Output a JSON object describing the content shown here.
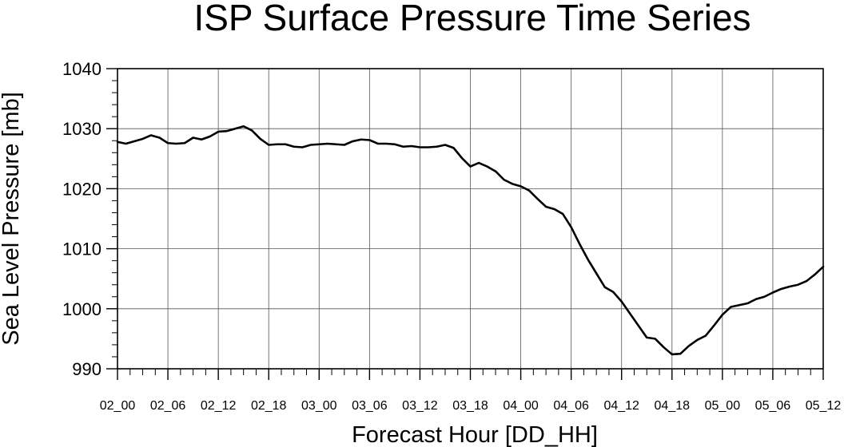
{
  "chart_data": {
    "type": "line",
    "title": "ISP Surface Pressure Time Series",
    "xlabel": "Forecast Hour [DD_HH]",
    "ylabel": "Sea Level Pressure [mb]",
    "ylim": [
      990,
      1040
    ],
    "yticks": [
      990,
      1000,
      1010,
      1020,
      1030,
      1040
    ],
    "xlim": [
      0,
      84
    ],
    "x_step_hours": 1.5,
    "x_major_ticks": [
      {
        "hour": 0,
        "label": "02_00"
      },
      {
        "hour": 6,
        "label": "02_06"
      },
      {
        "hour": 12,
        "label": "02_12"
      },
      {
        "hour": 18,
        "label": "02_18"
      },
      {
        "hour": 24,
        "label": "03_00"
      },
      {
        "hour": 30,
        "label": "03_06"
      },
      {
        "hour": 36,
        "label": "03_12"
      },
      {
        "hour": 42,
        "label": "03_18"
      },
      {
        "hour": 48,
        "label": "04_00"
      },
      {
        "hour": 54,
        "label": "04_06"
      },
      {
        "hour": 60,
        "label": "04_12"
      },
      {
        "hour": 66,
        "label": "04_18"
      },
      {
        "hour": 72,
        "label": "05_00"
      },
      {
        "hour": 78,
        "label": "05_06"
      },
      {
        "hour": 84,
        "label": "05_12"
      }
    ],
    "grid": true,
    "series": [
      {
        "name": "",
        "color": "#000000",
        "x_hours": [
          0,
          1,
          2,
          3,
          4,
          5,
          6,
          7,
          8,
          9,
          10,
          11,
          12,
          13,
          14,
          15,
          16,
          17,
          18,
          19,
          20,
          21,
          22,
          23,
          24,
          25,
          26,
          27,
          28,
          29,
          30,
          31,
          32,
          33,
          34,
          35,
          36,
          37,
          38,
          39,
          40,
          41,
          42,
          43,
          44,
          45,
          46,
          47,
          48,
          49,
          50,
          51,
          52,
          53,
          54,
          55,
          56,
          57,
          58,
          59,
          60,
          61,
          62,
          63,
          64,
          65,
          66,
          67,
          68,
          69,
          70,
          71,
          72,
          73,
          74,
          75,
          76,
          77,
          78,
          79,
          80,
          81,
          82,
          83,
          84
        ],
        "values": [
          1027.8,
          1027.5,
          1027.9,
          1028.3,
          1028.9,
          1028.5,
          1027.6,
          1027.5,
          1027.6,
          1028.5,
          1028.2,
          1028.7,
          1029.5,
          1029.6,
          1030.0,
          1030.4,
          1029.7,
          1028.3,
          1027.3,
          1027.4,
          1027.4,
          1027.0,
          1026.9,
          1027.3,
          1027.4,
          1027.5,
          1027.4,
          1027.3,
          1027.9,
          1028.2,
          1028.1,
          1027.5,
          1027.5,
          1027.4,
          1027.0,
          1027.1,
          1026.9,
          1026.9,
          1027.0,
          1027.3,
          1026.8,
          1025.1,
          1023.7,
          1024.3,
          1023.7,
          1022.9,
          1021.5,
          1020.8,
          1020.4,
          1019.7,
          1018.3,
          1017.0,
          1016.6,
          1015.8,
          1013.6,
          1010.8,
          1008.2,
          1005.9,
          1003.6,
          1002.8,
          1001.2,
          999.2,
          997.2,
          995.2,
          995.0,
          993.6,
          992.4,
          992.5,
          993.8,
          994.8,
          995.5,
          997.2,
          999.0,
          1000.3,
          1000.6,
          1000.9,
          1001.6,
          1002.0,
          1002.7,
          1003.3,
          1003.7,
          1004.0,
          1004.6,
          1005.7,
          1007.0
        ]
      }
    ]
  }
}
